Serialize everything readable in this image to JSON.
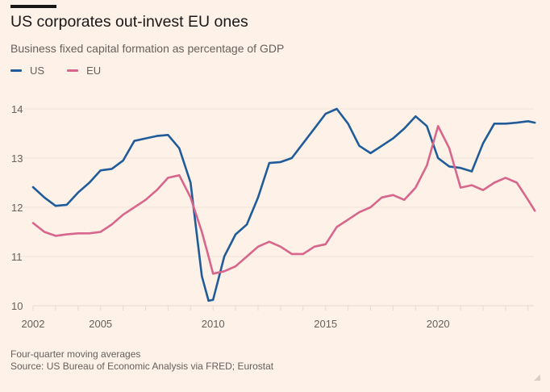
{
  "header": {
    "title": "US corporates out-invest EU ones",
    "subtitle": "Business fixed capital formation as percentage of GDP"
  },
  "legend": [
    {
      "label": "US",
      "color": "#1f5c99"
    },
    {
      "label": "EU",
      "color": "#d8668c"
    }
  ],
  "footer": {
    "note": "Four-quarter moving averages",
    "source": "Source: US Bureau of Economic Analysis via FRED; Eurostat"
  },
  "chart_data": {
    "type": "line",
    "title": "US corporates out-invest EU ones",
    "subtitle": "Business fixed capital formation as percentage of GDP",
    "xlabel": "",
    "ylabel": "",
    "xlim": [
      2002,
      2024.5
    ],
    "ylim": [
      10,
      14.2
    ],
    "yticks": [
      10,
      11,
      12,
      13,
      14
    ],
    "xticks": [
      2002,
      2005,
      2010,
      2015,
      2020
    ],
    "grid": true,
    "legend_position": "top-left",
    "x": [
      2002.0,
      2002.5,
      2003.0,
      2003.5,
      2004.0,
      2004.5,
      2005.0,
      2005.5,
      2006.0,
      2006.5,
      2007.0,
      2007.5,
      2008.0,
      2008.5,
      2009.0,
      2009.5,
      2009.8,
      2010.0,
      2010.5,
      2011.0,
      2011.5,
      2012.0,
      2012.5,
      2013.0,
      2013.5,
      2014.0,
      2014.5,
      2015.0,
      2015.5,
      2016.0,
      2016.5,
      2017.0,
      2017.5,
      2018.0,
      2018.5,
      2019.0,
      2019.5,
      2020.0,
      2020.5,
      2021.0,
      2021.5,
      2022.0,
      2022.5,
      2023.0,
      2023.5,
      2024.0,
      2024.3
    ],
    "series": [
      {
        "name": "US",
        "color": "#1f5c99",
        "values": [
          12.41,
          12.2,
          12.03,
          12.05,
          12.3,
          12.5,
          12.75,
          12.78,
          12.95,
          13.35,
          13.4,
          13.45,
          13.47,
          13.2,
          12.5,
          10.6,
          10.1,
          10.12,
          11.0,
          11.45,
          11.65,
          12.2,
          12.9,
          12.92,
          13.0,
          13.3,
          13.6,
          13.9,
          14.0,
          13.7,
          13.25,
          13.1,
          13.25,
          13.4,
          13.6,
          13.85,
          13.65,
          13.0,
          12.83,
          12.8,
          12.73,
          13.3,
          13.7,
          13.7,
          13.72,
          13.75,
          13.72
        ]
      },
      {
        "name": "EU",
        "color": "#d8668c",
        "values": [
          11.68,
          11.5,
          11.42,
          11.45,
          11.47,
          11.47,
          11.5,
          11.65,
          11.85,
          12.0,
          12.15,
          12.35,
          12.6,
          12.65,
          12.2,
          11.5,
          11.0,
          10.65,
          10.7,
          10.8,
          11.0,
          11.2,
          11.3,
          11.2,
          11.05,
          11.05,
          11.2,
          11.25,
          11.6,
          11.75,
          11.9,
          12.0,
          12.2,
          12.25,
          12.15,
          12.4,
          12.85,
          13.65,
          13.2,
          12.4,
          12.45,
          12.35,
          12.5,
          12.6,
          12.5,
          12.15,
          11.93
        ]
      }
    ]
  }
}
